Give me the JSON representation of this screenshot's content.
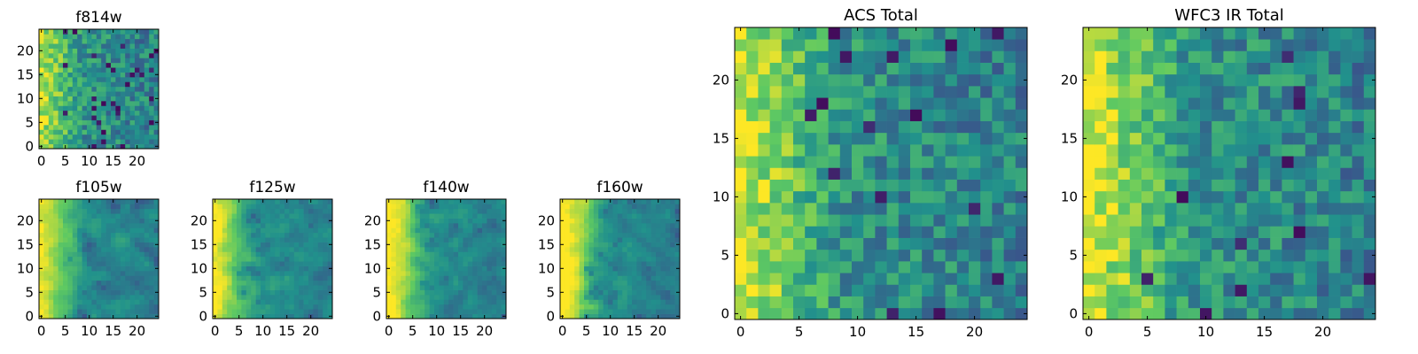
{
  "figure": {
    "colormap": [
      "#440154",
      "#3b528b",
      "#21918c",
      "#5ec962",
      "#fde725"
    ]
  },
  "chart_data": [
    {
      "type": "heatmap",
      "title": "f814w",
      "xlim": [
        0,
        24
      ],
      "ylim": [
        0,
        24
      ],
      "xticks": [
        0,
        5,
        10,
        15,
        20
      ],
      "yticks": [
        0,
        5,
        10,
        15,
        20
      ],
      "grid": false,
      "left_bias": 0.35,
      "seed": 11,
      "dark_fraction": 0.06,
      "smooth": 0
    },
    {
      "type": "heatmap",
      "title": "f105w",
      "xlim": [
        0,
        24
      ],
      "ylim": [
        0,
        24
      ],
      "xticks": [
        0,
        5,
        10,
        15,
        20
      ],
      "yticks": [
        0,
        5,
        10,
        15,
        20
      ],
      "grid": false,
      "left_bias": 0.45,
      "seed": 23,
      "dark_fraction": 0.05,
      "smooth": 1
    },
    {
      "type": "heatmap",
      "title": "f125w",
      "xlim": [
        0,
        24
      ],
      "ylim": [
        0,
        24
      ],
      "xticks": [
        0,
        5,
        10,
        15,
        20
      ],
      "yticks": [
        0,
        5,
        10,
        15,
        20
      ],
      "grid": false,
      "left_bias": 0.45,
      "seed": 37,
      "dark_fraction": 0.04,
      "smooth": 1
    },
    {
      "type": "heatmap",
      "title": "f140w",
      "xlim": [
        0,
        24
      ],
      "ylim": [
        0,
        24
      ],
      "xticks": [
        0,
        5,
        10,
        15,
        20
      ],
      "yticks": [
        0,
        5,
        10,
        15,
        20
      ],
      "grid": false,
      "left_bias": 0.5,
      "seed": 41,
      "dark_fraction": 0.05,
      "smooth": 1
    },
    {
      "type": "heatmap",
      "title": "f160w",
      "xlim": [
        0,
        24
      ],
      "ylim": [
        0,
        24
      ],
      "xticks": [
        0,
        5,
        10,
        15,
        20
      ],
      "yticks": [
        0,
        5,
        10,
        15,
        20
      ],
      "grid": false,
      "left_bias": 0.55,
      "seed": 53,
      "dark_fraction": 0.06,
      "smooth": 1
    },
    {
      "type": "heatmap",
      "title": "ACS Total",
      "xlim": [
        0,
        24
      ],
      "ylim": [
        0,
        24
      ],
      "xticks": [
        0,
        5,
        10,
        15,
        20
      ],
      "yticks": [
        0,
        5,
        10,
        15,
        20
      ],
      "grid": false,
      "left_bias": 0.4,
      "seed": 67,
      "dark_fraction": 0.025,
      "smooth": 0
    },
    {
      "type": "heatmap",
      "title": "WFC3 IR Total",
      "xlim": [
        0,
        24
      ],
      "ylim": [
        0,
        24
      ],
      "xticks": [
        0,
        5,
        10,
        15,
        20
      ],
      "yticks": [
        0,
        5,
        10,
        15,
        20
      ],
      "grid": false,
      "left_bias": 0.42,
      "seed": 79,
      "dark_fraction": 0.025,
      "smooth": 0
    }
  ]
}
